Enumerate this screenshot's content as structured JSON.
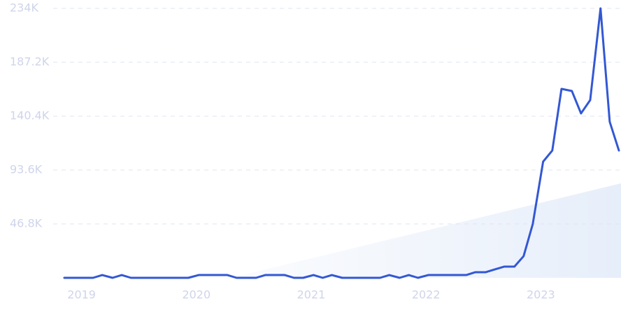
{
  "chart_data": {
    "type": "line",
    "x": [
      2018.85,
      2018.93,
      2019.02,
      2019.1,
      2019.18,
      2019.27,
      2019.35,
      2019.43,
      2019.52,
      2019.6,
      2019.68,
      2019.77,
      2019.85,
      2019.93,
      2020.02,
      2020.1,
      2020.18,
      2020.27,
      2020.35,
      2020.43,
      2020.52,
      2020.6,
      2020.68,
      2020.77,
      2020.85,
      2020.93,
      2021.02,
      2021.1,
      2021.18,
      2021.27,
      2021.35,
      2021.43,
      2021.52,
      2021.6,
      2021.68,
      2021.77,
      2021.85,
      2021.93,
      2022.02,
      2022.1,
      2022.18,
      2022.27,
      2022.35,
      2022.43,
      2022.52,
      2022.6,
      2022.68,
      2022.77,
      2022.85,
      2022.93,
      2023.02,
      2023.1,
      2023.18,
      2023.27,
      2023.35,
      2023.43,
      2023.52,
      2023.6,
      2023.68
    ],
    "series": [
      {
        "color": "#3358d4",
        "values": [
          0,
          0,
          0,
          0,
          2400,
          0,
          2400,
          0,
          0,
          0,
          0,
          0,
          0,
          0,
          2400,
          2400,
          2400,
          2400,
          0,
          0,
          0,
          2400,
          2400,
          2400,
          0,
          0,
          2400,
          0,
          2400,
          0,
          0,
          0,
          0,
          0,
          2400,
          0,
          2400,
          0,
          2400,
          2400,
          2400,
          2400,
          2400,
          4900,
          4900,
          7300,
          9700,
          9700,
          18800,
          46800,
          100900,
          110600,
          164100,
          162300,
          142800,
          154400,
          234000,
          135500,
          110600
        ]
      }
    ],
    "xlim": [
      2018.85,
      2023.68
    ],
    "xticks": [
      2019,
      2020,
      2021,
      2022,
      2023
    ],
    "ylim": [
      0,
      234000
    ],
    "yticks": [
      {
        "value": 46800,
        "label": "46.8K"
      },
      {
        "value": 93600,
        "label": "93.6K"
      },
      {
        "value": 140400,
        "label": "140.4K"
      },
      {
        "value": 187200,
        "label": "187.2K"
      },
      {
        "value": 234000,
        "label": "234K"
      }
    ],
    "grid": true
  }
}
